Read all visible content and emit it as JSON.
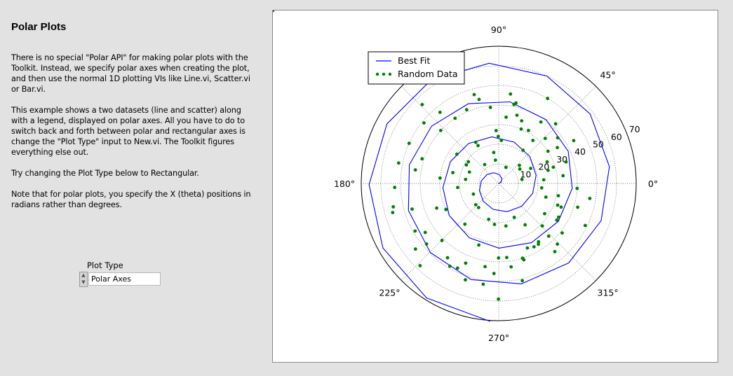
{
  "panel": {
    "title": "Polar Plots",
    "paragraphs": [
      "There is no special \"Polar API\" for making polar plots with the Toolkit.  Instead, we specify polar axes when creating the plot, and then use the normal 1D plotting VIs like Line.vi, Scatter.vi or Bar.vi.",
      "This example shows a two datasets (line and scatter) along with a legend, displayed on polar axes.  All you have to do to switch back and forth between polar and rectangular axes is change the \"Plot Type\" input to New.vi.  The Toolkit figures everything else out.",
      "Try changing the Plot Type below to Rectangular.",
      "Note that for polar plots, you specify the X (theta) positions in radians rather than degrees."
    ],
    "plot_type": {
      "label": "Plot Type",
      "value": "Polar Axes"
    }
  },
  "colors": {
    "line": "#0000ff",
    "scatter": "#007f00",
    "background": "#e2e2e2"
  },
  "chart_data": {
    "type": "scatter",
    "projection": "polar",
    "angle_unit": "radians",
    "angle_tick_labels": [
      "0°",
      "45°",
      "90°",
      "135°",
      "180°",
      "225°",
      "270°",
      "315°"
    ],
    "radial_tick_labels": [
      "10",
      "20",
      "30",
      "40",
      "50",
      "60",
      "70"
    ],
    "rlim": [
      0,
      70
    ],
    "grid": true,
    "legend_placement": "top-left",
    "legend": [
      "Best Fit",
      "Random Data"
    ],
    "series": [
      {
        "name": "Best Fit",
        "kind": "line",
        "spiral_equation": "r = 3*theta",
        "theta": [
          0,
          0.5,
          1,
          1.5,
          2,
          2.5,
          3,
          3.5,
          4,
          4.5,
          5,
          5.5,
          6,
          6.5,
          7,
          7.5,
          8,
          8.5,
          9,
          9.5,
          10,
          10.5,
          11,
          11.5,
          12,
          12.5,
          13,
          13.5,
          14,
          14.5,
          15,
          15.5,
          16,
          16.5,
          17,
          17.5,
          18,
          18.5,
          19,
          19.5,
          20,
          20.5,
          21,
          21.5,
          22,
          22.5,
          23,
          23.5
        ],
        "r": [
          0,
          1.5,
          3,
          4.5,
          6,
          7.5,
          9,
          10.5,
          12,
          13.5,
          15,
          16.5,
          18,
          19.5,
          21,
          22.5,
          24,
          25.5,
          27,
          28.5,
          30,
          31.5,
          33,
          34.5,
          36,
          37.5,
          39,
          40.5,
          42,
          43.5,
          45,
          46.5,
          48,
          49.5,
          51,
          52.5,
          54,
          55.5,
          57,
          58.5,
          60,
          61.5,
          63,
          64.5,
          66,
          67.5,
          69,
          70.5
        ]
      },
      {
        "name": "Random Data",
        "kind": "scatter",
        "theta": [
          0.17,
          0.44,
          0.72,
          0.94,
          1.15,
          1.51,
          1.73,
          2.21,
          2.62,
          2.91,
          3.24,
          3.6,
          4.02,
          4.4,
          4.71,
          5.03,
          5.4,
          5.83,
          6.12,
          0.52,
          1.05,
          1.44,
          1.84,
          2.4,
          2.83,
          3.43,
          3.84,
          4.18,
          4.56,
          4.95,
          5.22,
          5.62,
          5.93,
          0.29,
          0.66,
          1.22,
          1.62,
          2.08,
          2.53,
          3.05,
          3.52,
          3.93,
          4.32,
          4.82,
          5.31,
          5.72,
          6.22,
          0.31,
          0.77,
          1.18,
          1.58,
          2.07,
          2.52,
          3.02,
          3.54,
          4.02,
          4.44,
          4.88,
          5.28,
          5.7,
          6.08,
          0.12,
          0.55,
          0.97,
          1.38,
          1.8,
          2.26,
          2.72,
          3.18,
          3.66,
          4.11,
          4.55,
          5.02,
          5.47,
          5.92,
          0.26,
          0.58,
          0.81,
          1.36,
          1.68,
          2.34,
          3.36,
          3.81,
          4.66,
          5.13,
          5.51,
          6.0,
          0.9,
          1.31,
          2.16,
          2.98,
          3.73,
          4.26,
          4.71,
          5.48,
          5.99,
          0.08,
          0.42,
          1.06,
          1.46,
          1.98,
          2.46,
          2.94,
          3.41,
          3.95,
          4.38,
          4.86,
          5.29,
          5.77,
          6.18,
          0.6,
          1.71,
          2.77,
          3.89,
          4.61,
          5.14,
          5.86
        ],
        "r": [
          12,
          18,
          14,
          21,
          9,
          22,
          16,
          12,
          19,
          24,
          21,
          30,
          27,
          33,
          38,
          41,
          45,
          49,
          47,
          44,
          50,
          46,
          47,
          40,
          41,
          46,
          48,
          49,
          52,
          51,
          37,
          41,
          32,
          29,
          38,
          34,
          27,
          24,
          26,
          30,
          34,
          41,
          44,
          38,
          36,
          35,
          40,
          36,
          33,
          30,
          24,
          22,
          19,
          17,
          14,
          16,
          19,
          22,
          25,
          28,
          31,
          33,
          35,
          38,
          41,
          44,
          47,
          50,
          53,
          49,
          46,
          43,
          40,
          37,
          34,
          26,
          30,
          42,
          42,
          39,
          56,
          55,
          54,
          46,
          36,
          31,
          25,
          28,
          36,
          40,
          43,
          45,
          48,
          59,
          43,
          42,
          23,
          27,
          31,
          34,
          41,
          49,
          52,
          56,
          58,
          52,
          43,
          37,
          35,
          22,
          13,
          12,
          16,
          16,
          21,
          19
        ]
      }
    ]
  }
}
